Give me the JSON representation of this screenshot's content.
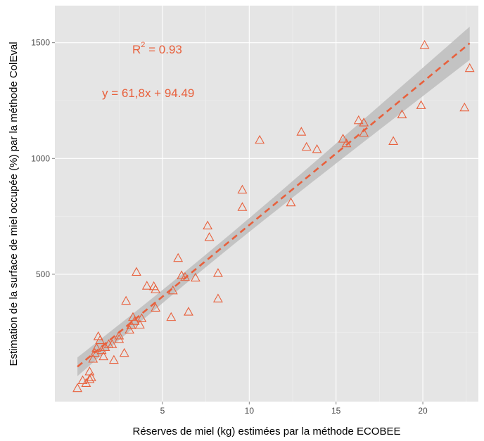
{
  "chart_data": {
    "type": "scatter",
    "xlabel": "Réserves de miel (kg) estimées par la méthode ECOBEE",
    "ylabel": "Estimation de la surface de miel occupée (%) par la méthode ColEval",
    "xlim": [
      -1.2,
      23.2
    ],
    "ylim": [
      -50,
      1660
    ],
    "x_ticks": [
      5,
      10,
      15,
      20
    ],
    "y_ticks": [
      500,
      1000,
      1500
    ],
    "x_tick_labels": [
      "5",
      "10",
      "15",
      "20"
    ],
    "y_tick_labels": [
      "500",
      "1000",
      "1500"
    ],
    "grid": true,
    "background": "#e5e5e5",
    "marker": "triangle-open",
    "color": "#e8603c",
    "fit": {
      "slope": 61.8,
      "intercept": 94.49,
      "x_range": [
        0.1,
        22.7
      ],
      "style": "dashed",
      "ci_color": "#bdbdbd"
    },
    "annotations": {
      "r2_label": "R",
      "r2_exp": "2",
      "r2_value": " = 0.93",
      "equation": "y = 61,8x + 94.49"
    },
    "points": [
      [
        0.1,
        8
      ],
      [
        0.4,
        42
      ],
      [
        0.6,
        30
      ],
      [
        0.8,
        47
      ],
      [
        0.9,
        55
      ],
      [
        0.8,
        80
      ],
      [
        1.0,
        135
      ],
      [
        1.1,
        160
      ],
      [
        1.2,
        182
      ],
      [
        1.3,
        232
      ],
      [
        1.4,
        215
      ],
      [
        1.5,
        172
      ],
      [
        1.6,
        145
      ],
      [
        1.7,
        185
      ],
      [
        1.9,
        198
      ],
      [
        2.1,
        198
      ],
      [
        2.2,
        130
      ],
      [
        2.5,
        220
      ],
      [
        2.5,
        235
      ],
      [
        2.8,
        160
      ],
      [
        2.9,
        385
      ],
      [
        3.1,
        260
      ],
      [
        3.2,
        280
      ],
      [
        3.3,
        315
      ],
      [
        3.4,
        298
      ],
      [
        3.5,
        510
      ],
      [
        3.7,
        282
      ],
      [
        3.8,
        310
      ],
      [
        4.1,
        450
      ],
      [
        4.5,
        448
      ],
      [
        4.6,
        435
      ],
      [
        4.6,
        355
      ],
      [
        5.5,
        315
      ],
      [
        5.6,
        430
      ],
      [
        5.9,
        570
      ],
      [
        6.1,
        495
      ],
      [
        6.3,
        488
      ],
      [
        6.5,
        338
      ],
      [
        6.9,
        485
      ],
      [
        7.6,
        710
      ],
      [
        7.7,
        660
      ],
      [
        8.2,
        505
      ],
      [
        8.2,
        395
      ],
      [
        9.6,
        865
      ],
      [
        9.6,
        790
      ],
      [
        10.6,
        1080
      ],
      [
        12.4,
        810
      ],
      [
        13.0,
        1115
      ],
      [
        13.3,
        1050
      ],
      [
        13.9,
        1040
      ],
      [
        15.4,
        1085
      ],
      [
        15.6,
        1065
      ],
      [
        16.3,
        1165
      ],
      [
        16.6,
        1155
      ],
      [
        16.6,
        1110
      ],
      [
        18.3,
        1075
      ],
      [
        18.8,
        1190
      ],
      [
        19.9,
        1230
      ],
      [
        20.1,
        1490
      ],
      [
        22.4,
        1220
      ],
      [
        22.7,
        1390
      ]
    ]
  }
}
